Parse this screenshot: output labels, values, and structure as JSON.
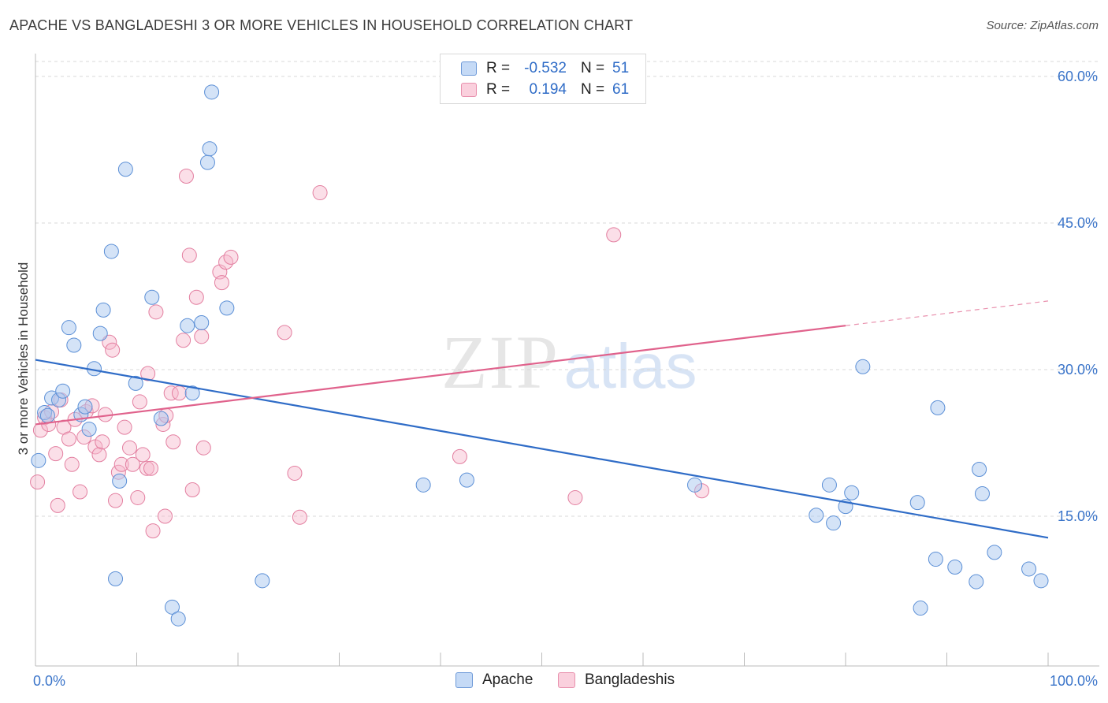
{
  "header": {
    "title": "APACHE VS BANGLADESHI 3 OR MORE VEHICLES IN HOUSEHOLD CORRELATION CHART",
    "source": "Source: ZipAtlas.com"
  },
  "watermark": {
    "zip": "ZIP",
    "atlas": "atlas"
  },
  "legend": {
    "rows": [
      {
        "r_label": "R =",
        "r_value": "-0.532",
        "n_label": "N =",
        "n_value": "51",
        "color": "#a9c8f0"
      },
      {
        "r_label": "R =",
        "r_value": "0.194",
        "n_label": "N =",
        "n_value": "61",
        "color": "#f6b9cb"
      }
    ]
  },
  "bottom_legend": {
    "apache": "Apache",
    "bangladeshis": "Bangladeshis"
  },
  "colors": {
    "apache_fill": "#a9c8f0",
    "apache_stroke": "#5b8fd6",
    "apache_line": "#2f6cc7",
    "bang_fill": "#f6b9cb",
    "bang_stroke": "#e37fa0",
    "bang_line": "#e0628c",
    "axis_text": "#3a74c9",
    "grid": "#d8d8d8"
  },
  "chart_data": {
    "type": "scatter",
    "title": "APACHE VS BANGLADESHI 3 OR MORE VEHICLES IN HOUSEHOLD CORRELATION CHART",
    "xlabel": "",
    "ylabel": "3 or more Vehicles in Household",
    "xlim": [
      0,
      100
    ],
    "ylim": [
      0,
      63
    ],
    "x_tick_labels": {
      "min": "0.0%",
      "max": "100.0%"
    },
    "y_ticks": [
      15,
      30,
      45,
      60
    ],
    "y_tick_labels": [
      "15.0%",
      "30.0%",
      "45.0%",
      "60.0%"
    ],
    "grid": true,
    "legend_position": "top-center",
    "series": [
      {
        "name": "Apache",
        "r": -0.532,
        "n": 51,
        "trend": {
          "x": [
            0,
            100
          ],
          "y": [
            31.0,
            12.8
          ]
        },
        "points": [
          [
            0.3,
            20.7
          ],
          [
            0.9,
            25.6
          ],
          [
            1.2,
            25.3
          ],
          [
            1.6,
            27.1
          ],
          [
            2.3,
            26.9
          ],
          [
            2.7,
            27.8
          ],
          [
            3.3,
            34.3
          ],
          [
            3.8,
            32.5
          ],
          [
            4.5,
            25.4
          ],
          [
            4.9,
            26.2
          ],
          [
            5.3,
            23.9
          ],
          [
            5.8,
            30.1
          ],
          [
            6.4,
            33.7
          ],
          [
            6.7,
            36.1
          ],
          [
            7.5,
            42.1
          ],
          [
            7.9,
            8.6
          ],
          [
            8.3,
            18.6
          ],
          [
            8.9,
            50.5
          ],
          [
            9.9,
            28.6
          ],
          [
            11.5,
            37.4
          ],
          [
            12.4,
            25.0
          ],
          [
            13.5,
            5.7
          ],
          [
            14.1,
            4.5
          ],
          [
            15.0,
            34.5
          ],
          [
            15.5,
            27.6
          ],
          [
            16.4,
            34.8
          ],
          [
            17.0,
            51.2
          ],
          [
            17.2,
            52.6
          ],
          [
            17.4,
            58.4
          ],
          [
            18.9,
            36.3
          ],
          [
            22.4,
            8.4
          ],
          [
            38.3,
            18.2
          ],
          [
            42.6,
            18.7
          ],
          [
            65.1,
            18.2
          ],
          [
            77.1,
            15.1
          ],
          [
            78.4,
            18.2
          ],
          [
            78.8,
            14.3
          ],
          [
            80.0,
            16.0
          ],
          [
            80.6,
            17.4
          ],
          [
            81.7,
            30.3
          ],
          [
            87.1,
            16.4
          ],
          [
            87.4,
            5.6
          ],
          [
            88.9,
            10.6
          ],
          [
            89.1,
            26.1
          ],
          [
            90.8,
            9.8
          ],
          [
            92.9,
            8.3
          ],
          [
            93.2,
            19.8
          ],
          [
            93.5,
            17.3
          ],
          [
            94.7,
            11.3
          ],
          [
            98.1,
            9.6
          ],
          [
            99.3,
            8.4
          ]
        ]
      },
      {
        "name": "Bangladeshis",
        "r": 0.194,
        "n": 61,
        "trend": {
          "x": [
            0,
            80
          ],
          "y": [
            24.4,
            34.5
          ]
        },
        "points": [
          [
            0.2,
            18.5
          ],
          [
            0.5,
            23.8
          ],
          [
            0.9,
            25.1
          ],
          [
            1.3,
            24.4
          ],
          [
            1.6,
            25.7
          ],
          [
            2.0,
            21.4
          ],
          [
            2.2,
            16.1
          ],
          [
            2.5,
            26.9
          ],
          [
            2.8,
            24.1
          ],
          [
            3.3,
            22.9
          ],
          [
            3.6,
            20.3
          ],
          [
            3.9,
            24.9
          ],
          [
            4.4,
            17.5
          ],
          [
            4.8,
            23.1
          ],
          [
            5.0,
            25.7
          ],
          [
            5.6,
            26.3
          ],
          [
            5.9,
            22.1
          ],
          [
            6.3,
            21.3
          ],
          [
            6.6,
            22.6
          ],
          [
            6.9,
            25.4
          ],
          [
            7.3,
            32.8
          ],
          [
            7.6,
            32.0
          ],
          [
            7.9,
            16.6
          ],
          [
            8.2,
            19.5
          ],
          [
            8.5,
            20.3
          ],
          [
            8.8,
            24.1
          ],
          [
            9.3,
            22.0
          ],
          [
            9.6,
            20.3
          ],
          [
            10.1,
            16.9
          ],
          [
            10.3,
            26.7
          ],
          [
            10.6,
            21.3
          ],
          [
            11.0,
            19.9
          ],
          [
            11.1,
            29.6
          ],
          [
            11.4,
            19.9
          ],
          [
            11.6,
            13.5
          ],
          [
            11.9,
            35.9
          ],
          [
            12.6,
            24.4
          ],
          [
            12.9,
            25.3
          ],
          [
            12.8,
            15.0
          ],
          [
            13.4,
            27.6
          ],
          [
            13.6,
            22.6
          ],
          [
            14.2,
            27.6
          ],
          [
            14.6,
            33.0
          ],
          [
            14.9,
            49.8
          ],
          [
            15.2,
            41.7
          ],
          [
            15.5,
            17.7
          ],
          [
            15.9,
            37.4
          ],
          [
            16.4,
            33.4
          ],
          [
            16.6,
            22.0
          ],
          [
            18.2,
            40.0
          ],
          [
            18.4,
            38.9
          ],
          [
            18.8,
            41.0
          ],
          [
            19.3,
            41.5
          ],
          [
            24.6,
            33.8
          ],
          [
            25.6,
            19.4
          ],
          [
            26.1,
            14.9
          ],
          [
            28.1,
            48.1
          ],
          [
            41.9,
            21.1
          ],
          [
            53.3,
            16.9
          ],
          [
            57.1,
            43.8
          ],
          [
            65.8,
            17.6
          ]
        ]
      }
    ]
  }
}
